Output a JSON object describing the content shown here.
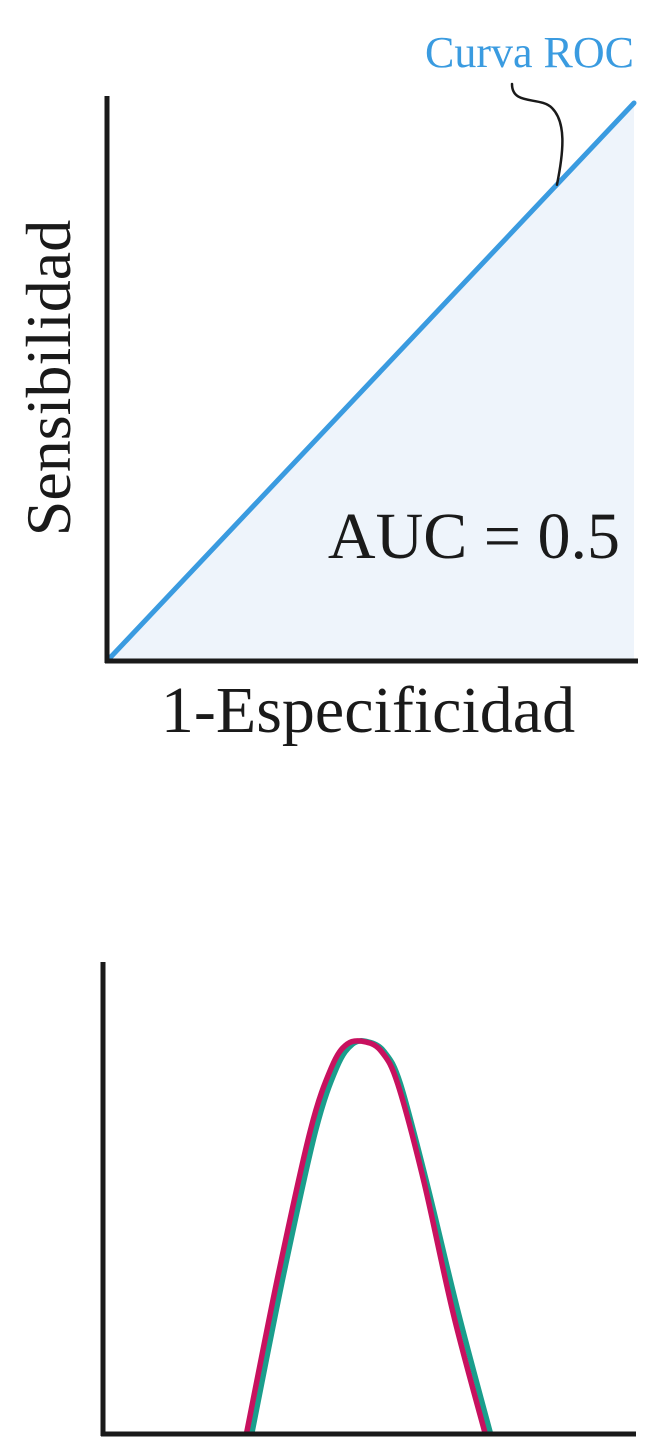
{
  "chart_data": [
    {
      "type": "area",
      "title": "",
      "xlabel": "1-Especificidad",
      "ylabel": "Sensibilidad",
      "xlim": [
        0,
        1
      ],
      "ylim": [
        0,
        1
      ],
      "grid": false,
      "series": [
        {
          "name": "Curva ROC",
          "x": [
            0,
            1
          ],
          "y": [
            0,
            1
          ],
          "color": "#3a9be0"
        }
      ],
      "fill_color": "#eef4fb",
      "annotations": [
        "AUC = 0.5"
      ]
    },
    {
      "type": "line",
      "title": "",
      "xlabel": "",
      "ylabel": "",
      "grid": false,
      "xlim": [
        0,
        1
      ],
      "ylim": [
        0,
        1
      ],
      "series": [
        {
          "x": [
            0.28,
            0.34,
            0.4,
            0.44,
            0.47,
            0.5,
            0.53,
            0.56,
            0.61,
            0.67,
            0.73
          ],
          "y": [
            0.0,
            0.4,
            0.76,
            0.92,
            0.98,
            0.985,
            0.96,
            0.88,
            0.63,
            0.3,
            0.0
          ],
          "color": "#1a9e8c"
        },
        {
          "x": [
            0.27,
            0.33,
            0.39,
            0.43,
            0.46,
            0.495,
            0.525,
            0.555,
            0.605,
            0.66,
            0.72
          ],
          "y": [
            0.0,
            0.4,
            0.76,
            0.92,
            0.98,
            0.985,
            0.96,
            0.88,
            0.63,
            0.3,
            0.0
          ],
          "color": "#c8115f"
        }
      ]
    }
  ]
}
